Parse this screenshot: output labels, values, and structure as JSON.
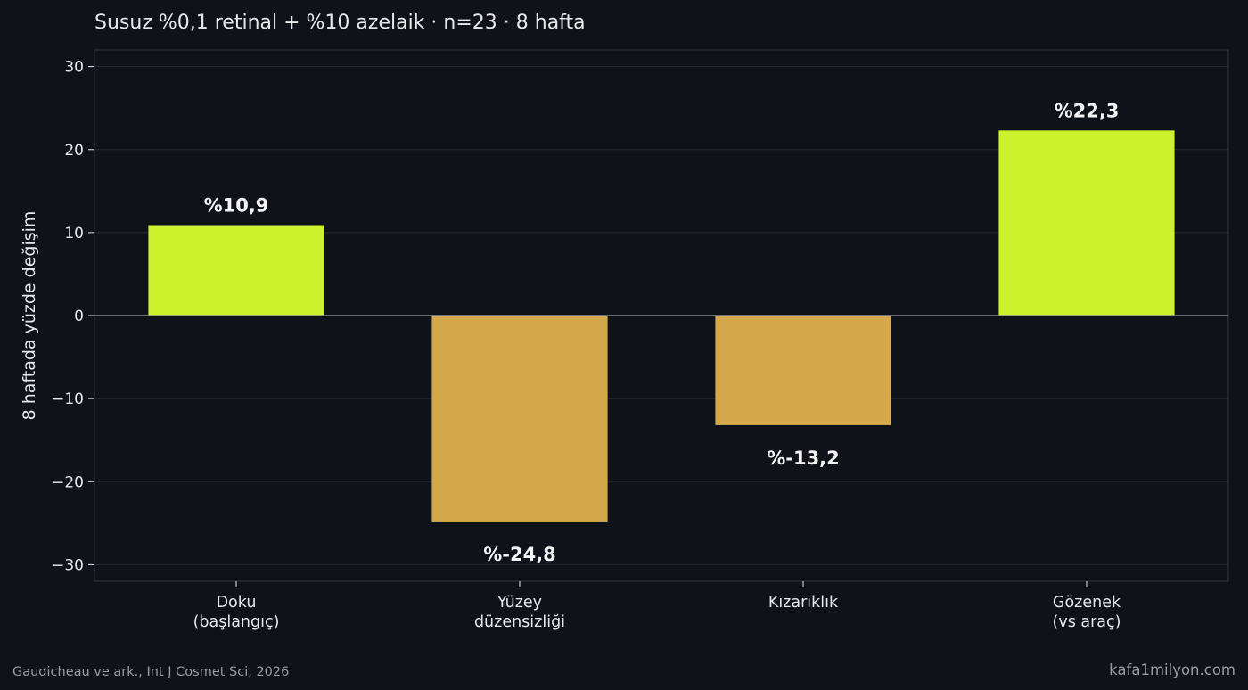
{
  "chart_data": {
    "type": "bar",
    "title": "Susuz %0,1 retinal + %10 azelaik · n=23 · 8 hafta",
    "ylabel": "8 haftada yüzde değişim",
    "xlabel": "",
    "categories": [
      [
        "Doku",
        "(başlangıç)"
      ],
      [
        "Yüzey",
        "düzensizliği"
      ],
      [
        "Kızarıklık"
      ],
      [
        "Gözenek",
        "(vs araç)"
      ]
    ],
    "values": [
      10.9,
      -24.8,
      -13.2,
      22.3
    ],
    "data_labels": [
      "%10,9",
      "%-24,8",
      "%-13,2",
      "%22,3"
    ],
    "ylim": [
      -32,
      32
    ],
    "yticks": [
      30,
      20,
      10,
      0,
      -10,
      -20,
      -30
    ],
    "ytick_labels": [
      "30",
      "20",
      "10",
      "0",
      "−10",
      "−20",
      "−30"
    ],
    "colors": {
      "positive": "#cbf22d",
      "negative": "#d4a84b",
      "background": "#10121a",
      "grid": "#262a35",
      "zero_line": "#8a8d96",
      "text": "#e8e8ea",
      "muted": "#9a9ca3"
    },
    "grid": true,
    "legend": "none"
  },
  "footer": {
    "source": "Gaudicheau ve ark., Int J Cosmet Sci, 2026",
    "site": "kafa1milyon.com"
  }
}
